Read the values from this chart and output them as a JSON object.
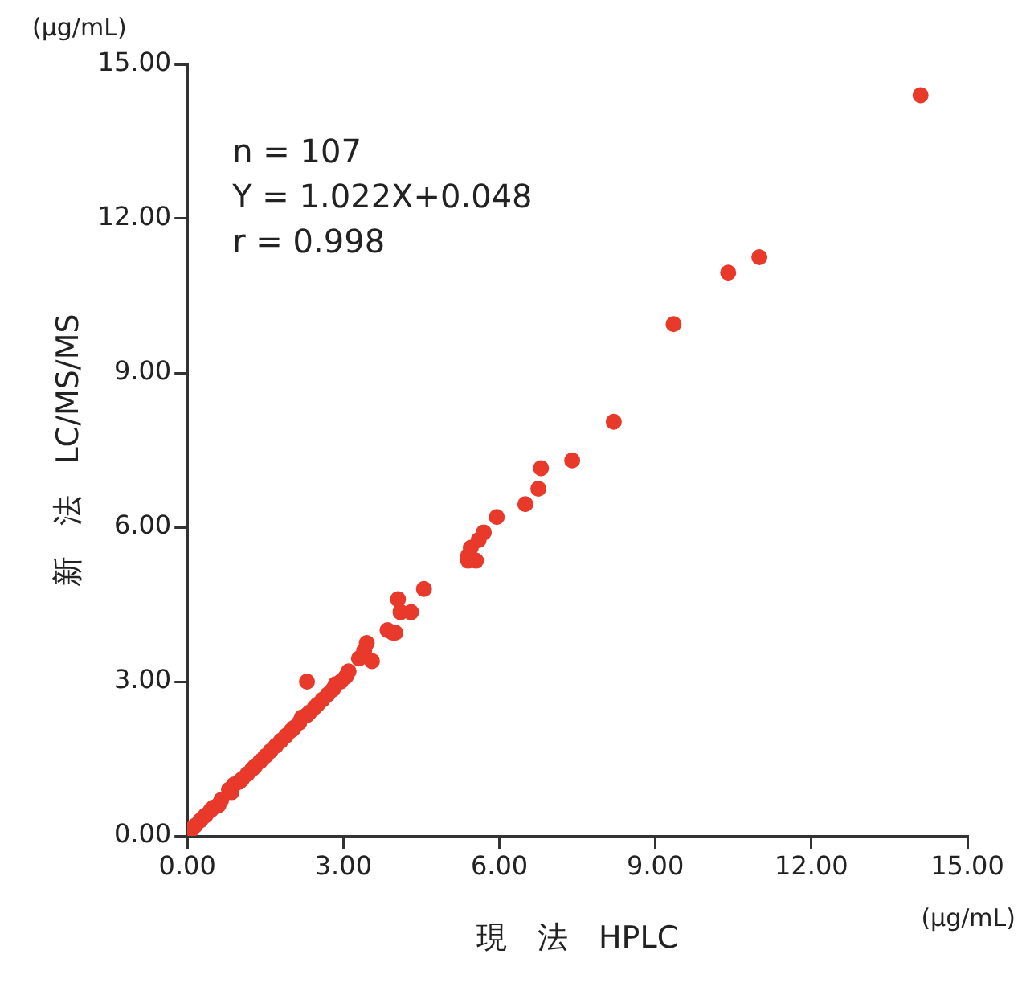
{
  "chart_data": {
    "type": "scatter",
    "xlabel": "現　法　HPLC",
    "ylabel": "新　法　LC/MS/MS",
    "annotations": [
      "n = 107",
      "Y = 1.022X+0.048",
      "r = 0.998",
      "(μg/mL)",
      "(μg/mL)"
    ],
    "x": [
      0.05,
      0.1,
      0.15,
      0.25,
      0.35,
      0.45,
      0.5,
      0.6,
      0.65,
      0.8,
      0.85,
      0.9,
      1.0,
      1.05,
      1.15,
      1.25,
      1.3,
      1.4,
      1.5,
      1.6,
      1.7,
      1.8,
      1.9,
      2.0,
      2.05,
      2.15,
      2.2,
      2.3,
      2.35,
      2.45,
      2.5,
      2.6,
      2.7,
      2.8,
      2.85,
      2.95,
      3.05,
      3.1,
      2.3,
      3.3,
      3.4,
      3.45,
      3.55,
      3.85,
      3.95,
      4.0,
      4.05,
      4.1,
      4.3,
      4.55,
      5.4,
      5.4,
      5.45,
      5.55,
      5.6,
      5.7,
      5.95,
      6.5,
      6.75,
      6.8,
      7.4,
      8.2,
      9.35,
      10.4,
      11.0,
      14.1
    ],
    "values": [
      0.1,
      0.15,
      0.2,
      0.3,
      0.4,
      0.5,
      0.55,
      0.6,
      0.7,
      0.9,
      0.85,
      1.0,
      1.05,
      1.1,
      1.2,
      1.3,
      1.35,
      1.45,
      1.55,
      1.65,
      1.75,
      1.85,
      1.95,
      2.05,
      2.1,
      2.2,
      2.3,
      2.35,
      2.4,
      2.5,
      2.55,
      2.65,
      2.75,
      2.85,
      2.95,
      3.0,
      3.1,
      3.2,
      3.0,
      3.45,
      3.6,
      3.75,
      3.4,
      4.0,
      3.95,
      3.95,
      4.6,
      4.35,
      4.35,
      4.8,
      5.35,
      5.45,
      5.6,
      5.35,
      5.75,
      5.9,
      6.2,
      6.45,
      6.75,
      7.15,
      7.3,
      8.05,
      9.95,
      10.95,
      11.25,
      14.4
    ],
    "color": "#e8392b",
    "marker": "circle",
    "grid": false,
    "legend": false,
    "xlim": [
      0,
      15
    ],
    "ylim": [
      0,
      15
    ],
    "xticks": [
      {
        "value": 0,
        "label": "0.00"
      },
      {
        "value": 3,
        "label": "3.00"
      },
      {
        "value": 6,
        "label": "6.00"
      },
      {
        "value": 9,
        "label": "9.00"
      },
      {
        "value": 12,
        "label": "12.00"
      },
      {
        "value": 15,
        "label": "15.00"
      }
    ],
    "yticks": [
      {
        "value": 0,
        "label": "0.00"
      },
      {
        "value": 3,
        "label": "3.00"
      },
      {
        "value": 6,
        "label": "6.00"
      },
      {
        "value": 9,
        "label": "9.00"
      },
      {
        "value": 12,
        "label": "12.00"
      },
      {
        "value": 15,
        "label": "15.00"
      }
    ]
  }
}
